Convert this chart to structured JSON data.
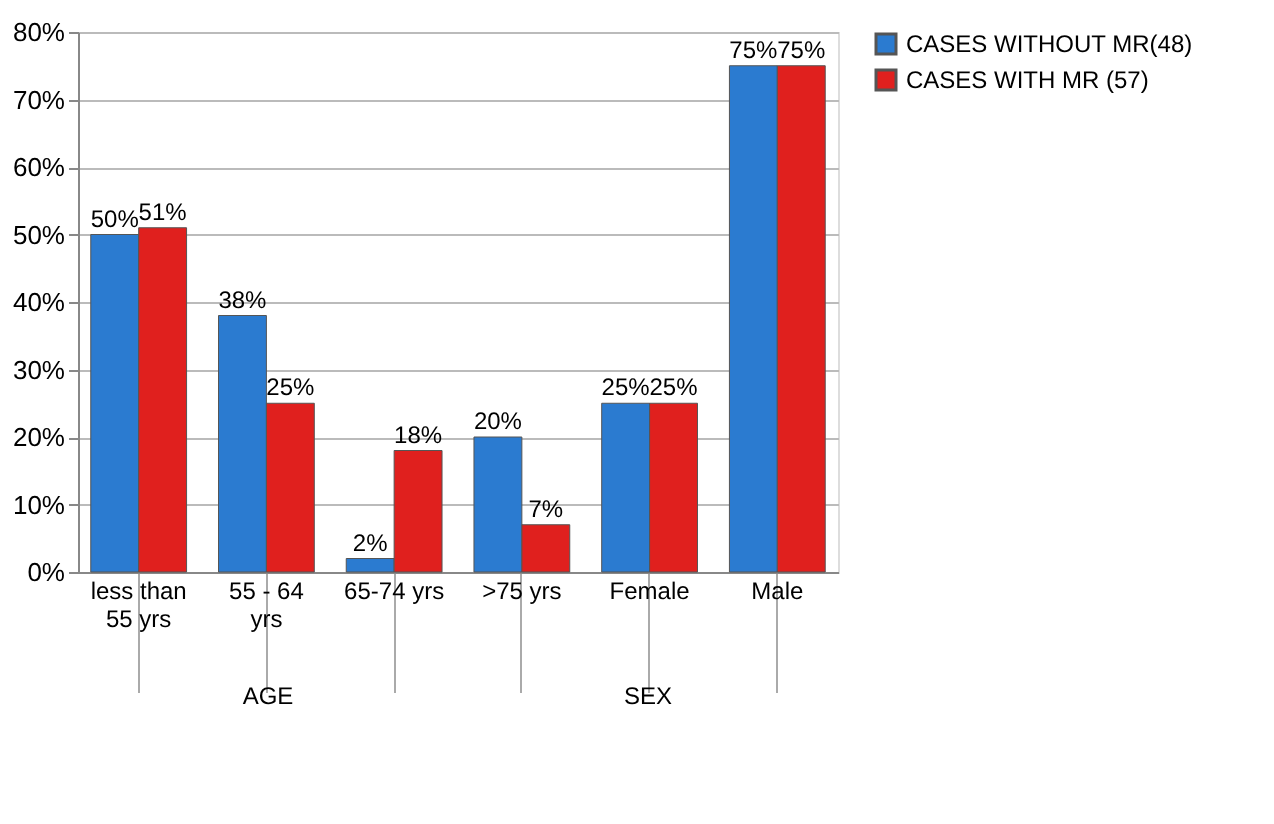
{
  "chart_data": {
    "type": "bar",
    "categories": [
      "less than 55 yrs",
      "55 - 64 yrs",
      "65-74 yrs",
      ">75 yrs",
      "Female",
      "Male"
    ],
    "series": [
      {
        "name": "CASES WITHOUT MR(48)",
        "color": "#2b7bd0",
        "values": [
          50,
          38,
          2,
          20,
          25,
          75
        ],
        "value_labels": [
          "50%",
          "38%",
          "2%",
          "20%",
          "25%",
          "75%"
        ]
      },
      {
        "name": "CASES WITH MR (57)",
        "color": "#e0201e",
        "values": [
          51,
          25,
          18,
          7,
          25,
          75
        ],
        "value_labels": [
          "51%",
          "25%",
          "18%",
          "7%",
          "25%",
          "75%"
        ]
      }
    ],
    "ylim": [
      0,
      80
    ],
    "yticks": [
      {
        "value": 0,
        "label": "0%"
      },
      {
        "value": 10,
        "label": "10%"
      },
      {
        "value": 20,
        "label": "20%"
      },
      {
        "value": 30,
        "label": "30%"
      },
      {
        "value": 40,
        "label": "40%"
      },
      {
        "value": 50,
        "label": "50%"
      },
      {
        "value": 60,
        "label": "60%"
      },
      {
        "value": 70,
        "label": "70%"
      },
      {
        "value": 80,
        "label": "80%"
      }
    ],
    "grid": "y",
    "legend": "right",
    "annotations": [
      "AGE",
      "SEX"
    ]
  }
}
